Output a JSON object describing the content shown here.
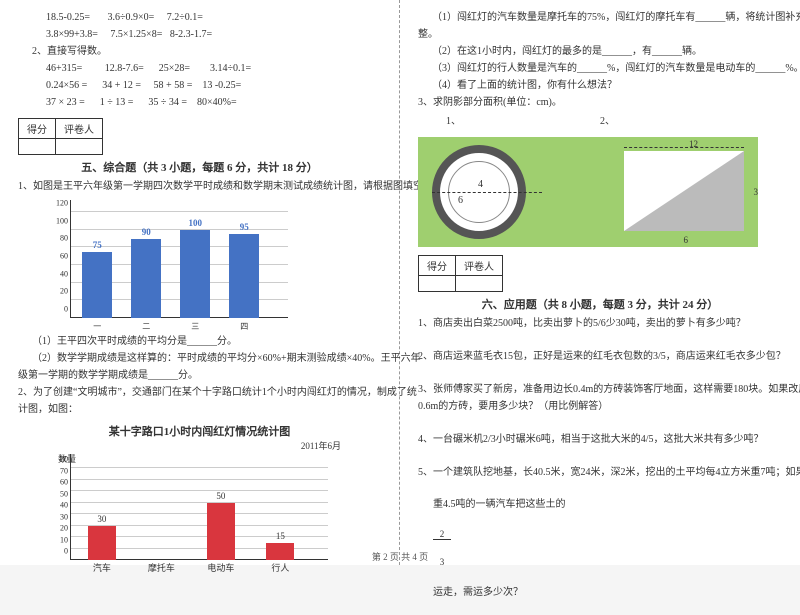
{
  "left": {
    "eq_rows": [
      "18.5-0.25=       3.6÷0.9×0=     7.2÷0.1=",
      "3.8×99+3.8=     7.5×1.25×8=   8-2.3-1.7=",
      "2、直接写得数。",
      "46+315=         12.8-7.6=      25×28=        3.14÷0.1=",
      "0.24×56 =      34 + 12 =     58 + 58 =    13 -0.25=",
      "37 × 23 =      1 ÷ 13 =      35 ÷ 34 =    80×40%="
    ],
    "score_header": [
      "得分",
      "评卷人"
    ],
    "section5_title": "五、综合题（共 3 小题，每题 6 分，共计 18 分）",
    "q1": "1、如图是王平六年级第一学期四次数学平时成绩和数学期末测试成绩统计图，请根据图填空：",
    "chart1": {
      "ylim": [
        0,
        120
      ],
      "ystep": 20,
      "labels": [
        "一",
        "二",
        "三",
        "四"
      ],
      "values": [
        75,
        90,
        100,
        95
      ],
      "bar_color": "#4472c4"
    },
    "q1_1": "（1）王平四次平时成绩的平均分是______分。",
    "q1_2": "（2）数学学期成绩是这样算的：平时成绩的平均分×60%+期末测验成绩×40%。王平六年",
    "q1_2b": "级第一学期的数学学期成绩是______分。",
    "q2": "2、为了创建“文明城市”，交通部门在某个十字路口统计1个小时内闯红灯的情况，制成了统",
    "q2b": "计图，如图：",
    "chart2_title": "某十字路口1小时内闯红灯情况统计图",
    "chart2_sub": "2011年6月",
    "chart2": {
      "ylim": [
        0,
        80
      ],
      "ystep": 10,
      "ytitle": "数量",
      "labels": [
        "汽车",
        "摩托车",
        "电动车",
        "行人"
      ],
      "values": [
        30,
        null,
        50,
        15
      ],
      "bar_color": "#d9363e"
    }
  },
  "right": {
    "r1": "（1）闯红灯的汽车数量是摩托车的75%，闯红灯的摩托车有______辆，将统计图补充完",
    "r1b": "整。",
    "r2": "（2）在这1小时内，闯红灯的最多的是______，有______辆。",
    "r3": "（3）闯红灯的行人数量是汽车的______%，闯红灯的汽车数量是电动车的______%。",
    "r4": "（4）看了上面的统计图，你有什么想法？",
    "q3": "3、求阴影部分面积(单位：cm)。",
    "q3_1": "1、",
    "q3_2": "2、",
    "fig": {
      "d_inner": "4",
      "d_outer": "6",
      "rect_w": "12",
      "rect_h": "3",
      "rect_base": "6"
    },
    "score_header": [
      "得分",
      "评卷人"
    ],
    "section6_title": "六、应用题（共 8 小题，每题 3 分，共计 24 分）",
    "a1": "1、商店卖出白菜2500吨，比卖出萝卜的5/6少30吨，卖出的萝卜有多少吨？",
    "a2": "2、商店运来蓝毛衣15包，正好是运来的红毛衣包数的3/5，商店运来红毛衣多少包？",
    "a3": "3、张师傅家买了新房，准备用边长0.4m的方砖装饰客厅地面，这样需要180块。如果改用边长",
    "a3b": "0.6m的方砖，要用多少块？（用比例解答）",
    "a4": "4、一台碾米机2/3小时碾米6吨，相当于这批大米的4/5，这批大米共有多少吨？",
    "a5": "5、一个建筑队挖地基，长40.5米，宽24米，深2米，挖出的土平均每4立方米重7吨；如果用载",
    "a5b_pre": "重4.5吨的一辆汽车把这些土的",
    "a5b_post": "运走，需运多少次？",
    "frac_n": "2",
    "frac_d": "3"
  },
  "footer": "第 2 页 共 4 页"
}
